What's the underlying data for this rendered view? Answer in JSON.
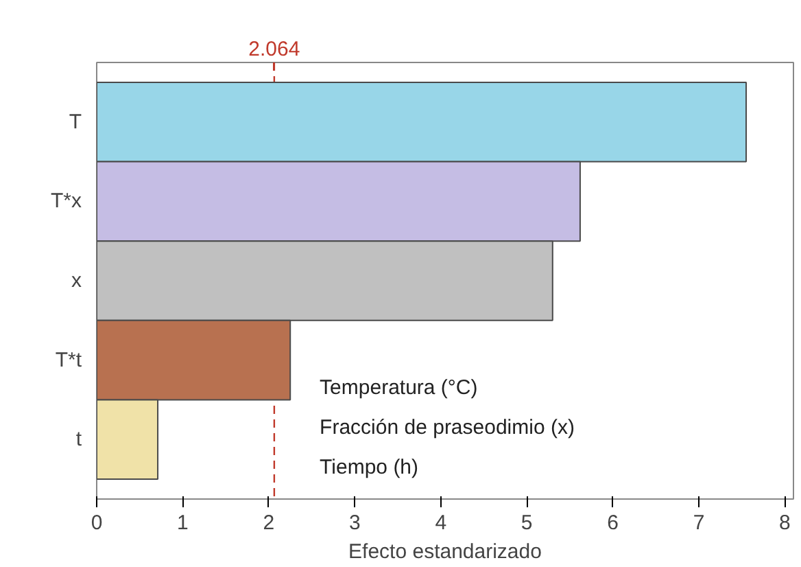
{
  "chart_data": {
    "type": "bar",
    "orientation": "horizontal",
    "xlabel": "Efecto estandarizado",
    "categories": [
      "T",
      "T*x",
      "x",
      "T*t",
      "t"
    ],
    "values": [
      7.55,
      5.62,
      5.3,
      2.25,
      0.71
    ],
    "colors": [
      "#98d6e8",
      "#c5bde4",
      "#c0c0c0",
      "#b87150",
      "#f0e2a8"
    ],
    "xlim": [
      0,
      8.1
    ],
    "xticks": [
      0,
      1,
      2,
      3,
      4,
      5,
      6,
      7,
      8
    ],
    "ref_lines": [
      {
        "axis": "x",
        "value": 2.064,
        "label": "2.064",
        "color": "#c0392b",
        "line_style": "dashed"
      }
    ],
    "annotations": [
      "Temperatura (°C)",
      "Fracción de praseodimio (x)",
      "Tiempo (h)"
    ],
    "grid": false
  }
}
